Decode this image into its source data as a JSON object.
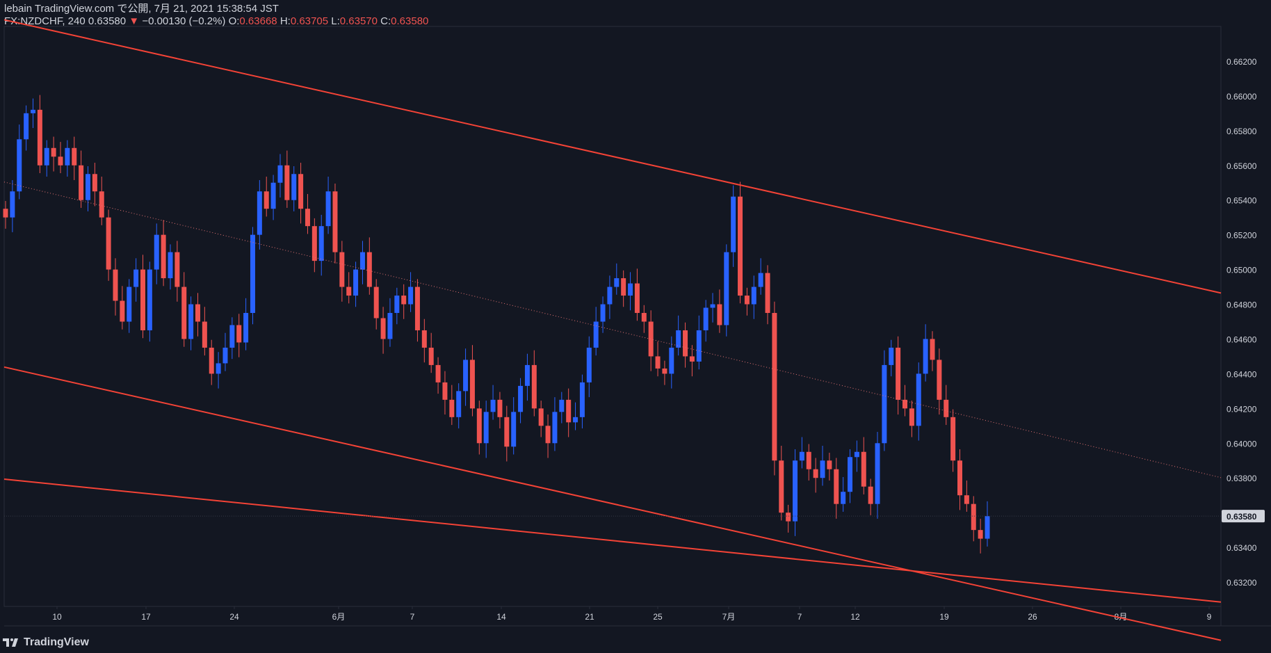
{
  "header": {
    "line1": "lebain TradingView.com で公開, 7月 21, 2021 15:38:54 JST",
    "symbol": "FX:NZDCHF, 240",
    "last": "0.63580",
    "change": "−0.00130 (−0.2%)",
    "o_label": "O:",
    "o": "0.63668",
    "h_label": "H:",
    "h": "0.63705",
    "l_label": "L:",
    "l": "0.63570",
    "c_label": "C:",
    "c": "0.63580"
  },
  "footer": {
    "brand": "TradingView"
  },
  "colors": {
    "background": "#131722",
    "up": "#2962ff",
    "down": "#ef5350",
    "trendline": "#f44336",
    "text": "#d1d4dc"
  },
  "chart_data": {
    "type": "candlestick",
    "y_ticks": [
      "0.66200",
      "0.66000",
      "0.65800",
      "0.65600",
      "0.65400",
      "0.65200",
      "0.65000",
      "0.64800",
      "0.64600",
      "0.64400",
      "0.64200",
      "0.64000",
      "0.63800",
      "0.63400",
      "0.63200"
    ],
    "price_label": "0.63580",
    "ylim": [
      0.6306,
      0.664
    ],
    "x_ticks": [
      "10",
      "17",
      "24",
      "6月",
      "7",
      "14",
      "21",
      "25",
      "7月",
      "7",
      "12",
      "19",
      "26",
      "8月",
      "9"
    ],
    "series": [
      {
        "name": "price",
        "values": [
          0.653,
          0.6545,
          0.6575,
          0.659,
          0.6592,
          0.656,
          0.657,
          0.6565,
          0.656,
          0.657,
          0.656,
          0.654,
          0.6555,
          0.6545,
          0.653,
          0.65,
          0.6482,
          0.647,
          0.649,
          0.65,
          0.6465,
          0.65,
          0.652,
          0.6495,
          0.651,
          0.649,
          0.646,
          0.648,
          0.647,
          0.6455,
          0.644,
          0.6446,
          0.6455,
          0.6468,
          0.6458,
          0.6475,
          0.652,
          0.6545,
          0.6535,
          0.655,
          0.656,
          0.654,
          0.6555,
          0.6535,
          0.6525,
          0.6505,
          0.6525,
          0.6545,
          0.651,
          0.649,
          0.6485,
          0.65,
          0.651,
          0.649,
          0.6472,
          0.646,
          0.6475,
          0.6485,
          0.648,
          0.649,
          0.6465,
          0.6455,
          0.6445,
          0.6435,
          0.6425,
          0.6415,
          0.643,
          0.6448,
          0.642,
          0.64,
          0.6418,
          0.6425,
          0.6415,
          0.6398,
          0.6418,
          0.6433,
          0.6445,
          0.642,
          0.641,
          0.64,
          0.6418,
          0.6425,
          0.6412,
          0.6415,
          0.6435,
          0.6455,
          0.647,
          0.648,
          0.649,
          0.6495,
          0.6485,
          0.6492,
          0.6475,
          0.647,
          0.645,
          0.6443,
          0.644,
          0.6455,
          0.6465,
          0.645,
          0.6447,
          0.6465,
          0.6478,
          0.648,
          0.6468,
          0.651,
          0.6542,
          0.6485,
          0.648,
          0.649,
          0.6498,
          0.6475,
          0.639,
          0.636,
          0.6355,
          0.639,
          0.6395,
          0.6385,
          0.638,
          0.639,
          0.6385,
          0.6365,
          0.6372,
          0.6392,
          0.6395,
          0.6375,
          0.6365,
          0.64,
          0.6445,
          0.6455,
          0.6425,
          0.642,
          0.641,
          0.644,
          0.646,
          0.6448,
          0.6425,
          0.6415,
          0.639,
          0.637,
          0.6365,
          0.635,
          0.6345,
          0.6358
        ]
      }
    ],
    "trendlines": [
      {
        "from": {
          "x": "10",
          "y": 0.6637
        },
        "to": {
          "x": "9",
          "y": 0.6488
        }
      },
      {
        "from": {
          "x": "10",
          "y": 0.6437
        },
        "to": {
          "x": "9",
          "y": 0.6288
        }
      },
      {
        "from": {
          "x": "10",
          "y": 0.63762
        },
        "to": {
          "x": "9",
          "y": 0.63092
        }
      },
      {
        "from": {
          "x": "10",
          "y": 0.6543
        },
        "to": {
          "x": "9",
          "y": 0.63818
        },
        "style": "dotted"
      }
    ],
    "grid": false
  }
}
